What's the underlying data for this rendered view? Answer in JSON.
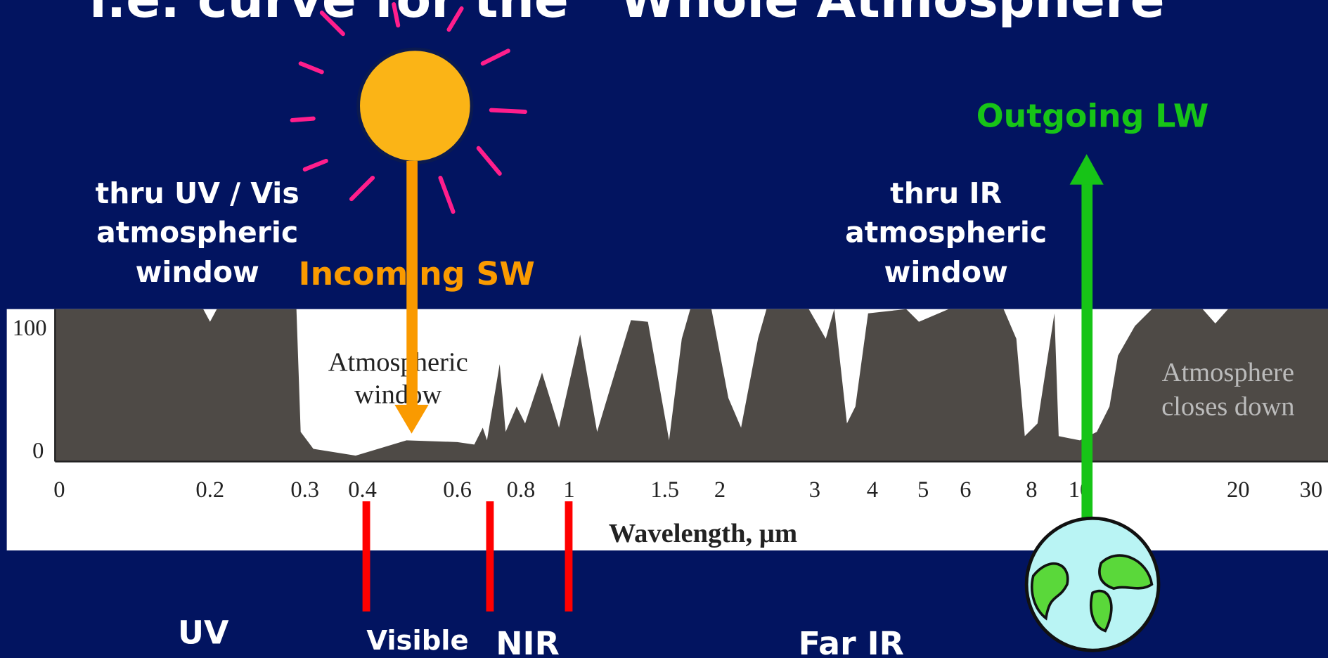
{
  "slide": {
    "title": "i.e. curve for the “Whole Atmosphere”",
    "uv_vis_window": [
      "thru UV / Vis",
      "atmospheric",
      "window"
    ],
    "incoming": "Incoming SW",
    "ir_window": [
      "thru IR",
      "atmospheric",
      "window"
    ],
    "outgoing": "Outgoing LW",
    "figure": {
      "yticks": [
        "100",
        "0"
      ],
      "xticks": [
        "0",
        "0.2",
        "0.3",
        "0.4",
        "0.6",
        "0.8",
        "1",
        "1.5",
        "2",
        "3",
        "4",
        "5",
        "6",
        "8",
        "10",
        "20",
        "30"
      ],
      "xlabel": "Wavelength, µm",
      "window_note": [
        "Atmospheric",
        "window"
      ],
      "closes_note": [
        "Atmosphere",
        "closes down"
      ]
    },
    "bands": [
      "UV",
      "Visible",
      "NIR",
      "Far IR"
    ]
  }
}
